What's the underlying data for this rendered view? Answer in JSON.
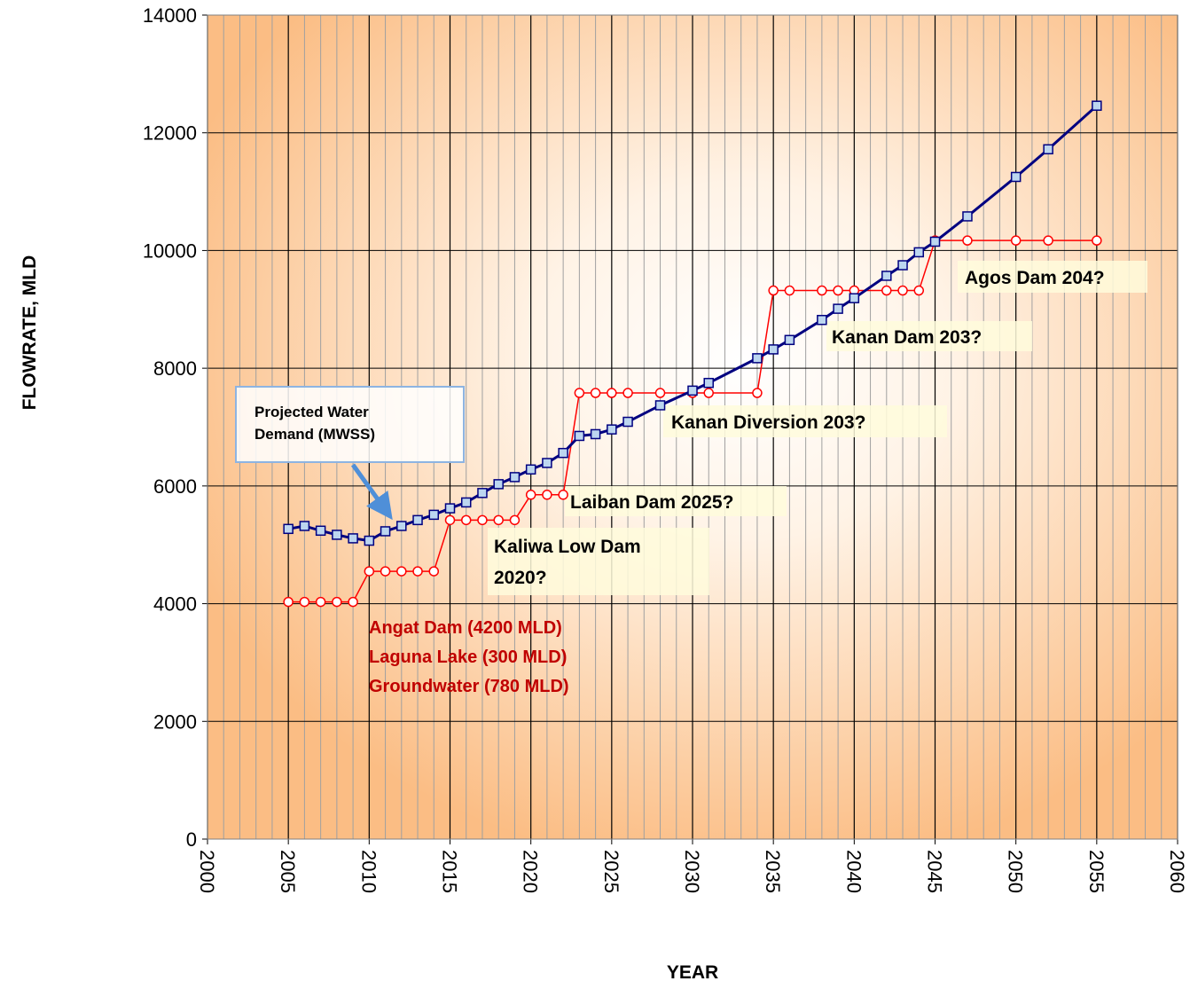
{
  "chart_data": {
    "type": "line",
    "x_label": "YEAR",
    "y_label": "FLOWRATE, MLD",
    "xlim": [
      2000,
      2060
    ],
    "xticks": [
      2000,
      2005,
      2010,
      2015,
      2020,
      2025,
      2030,
      2035,
      2040,
      2045,
      2050,
      2055,
      2060
    ],
    "ylim": [
      0,
      14000
    ],
    "yticks": [
      0,
      2000,
      4000,
      6000,
      8000,
      10000,
      12000,
      14000
    ],
    "grid": true,
    "series": [
      {
        "color": "#000080",
        "marker": "square",
        "marker_fill": "#bcd6f0",
        "x": [
          2005,
          2006,
          2007,
          2008,
          2009,
          2010,
          2011,
          2012,
          2013,
          2014,
          2015,
          2016,
          2017,
          2018,
          2019,
          2020,
          2021,
          2022,
          2023,
          2024,
          2025,
          2026,
          2028,
          2030,
          2031,
          2034,
          2035,
          2036,
          2038,
          2039,
          2040,
          2042,
          2043,
          2044,
          2045,
          2047,
          2050,
          2052,
          2055
        ],
        "values": [
          5270,
          5320,
          5240,
          5170,
          5110,
          5070,
          5230,
          5320,
          5420,
          5510,
          5620,
          5720,
          5880,
          6030,
          6150,
          6280,
          6390,
          6560,
          6850,
          6880,
          6960,
          7090,
          7370,
          7620,
          7750,
          8170,
          8320,
          8480,
          8820,
          9010,
          9190,
          9570,
          9750,
          9970,
          10150,
          10580,
          11250,
          11720,
          12460
        ]
      },
      {
        "color": "#ff0000",
        "marker": "circle",
        "marker_fill": "#ffffff",
        "x": [
          2005,
          2006,
          2007,
          2008,
          2009,
          2010,
          2011,
          2012,
          2013,
          2014,
          2015,
          2016,
          2017,
          2018,
          2019,
          2020,
          2021,
          2022,
          2023,
          2024,
          2025,
          2026,
          2028,
          2030,
          2031,
          2034,
          2035,
          2036,
          2038,
          2039,
          2040,
          2042,
          2043,
          2044,
          2045,
          2047,
          2050,
          2052,
          2055
        ],
        "values": [
          4030,
          4030,
          4030,
          4030,
          4030,
          4550,
          4550,
          4550,
          4550,
          4550,
          5420,
          5420,
          5420,
          5420,
          5420,
          5850,
          5850,
          5850,
          7580,
          7580,
          7580,
          7580,
          7580,
          7580,
          7580,
          7580,
          9320,
          9320,
          9320,
          9320,
          9320,
          9320,
          9320,
          9320,
          10170,
          10170,
          10170,
          10170,
          10170
        ]
      }
    ],
    "annotations": [
      {
        "lines": [
          "Projected Water",
          "Demand (MWSS)"
        ]
      },
      {
        "lines": [
          "Angat Dam (4200 MLD)",
          "Laguna Lake (300 MLD)",
          "Groundwater (780 MLD)"
        ]
      },
      {
        "lines": [
          "Kaliwa Low Dam",
          "2020?"
        ]
      },
      {
        "lines": [
          "Laiban Dam 2025?"
        ]
      },
      {
        "lines": [
          "Kanan Diversion 203?"
        ]
      },
      {
        "lines": [
          "Kanan Dam 203?"
        ]
      },
      {
        "lines": [
          "Agos Dam 204?"
        ]
      }
    ]
  }
}
